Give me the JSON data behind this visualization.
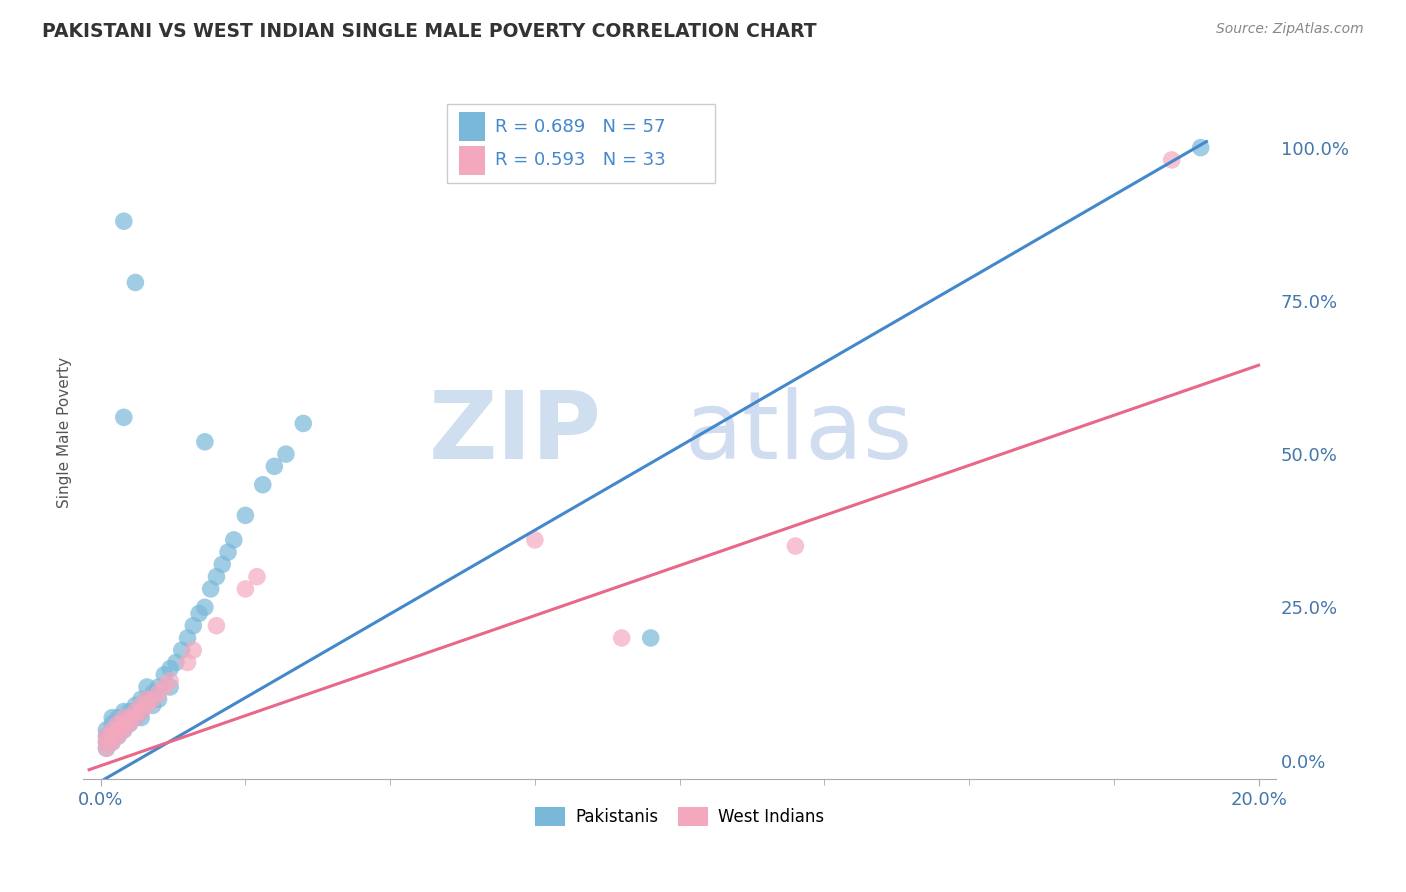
{
  "title": "PAKISTANI VS WEST INDIAN SINGLE MALE POVERTY CORRELATION CHART",
  "source": "Source: ZipAtlas.com",
  "ylabel": "Single Male Poverty",
  "x_min": 0.0,
  "x_max": 0.2,
  "y_min": -0.03,
  "y_max": 1.1,
  "right_yticks": [
    0.0,
    0.25,
    0.5,
    0.75,
    1.0
  ],
  "right_yticklabels": [
    "0.0%",
    "25.0%",
    "50.0%",
    "75.0%",
    "100.0%"
  ],
  "pakistani_R": 0.689,
  "pakistani_N": 57,
  "westindian_R": 0.593,
  "westindian_N": 33,
  "blue_color": "#7ab8d9",
  "pink_color": "#f4a8be",
  "blue_line_color": "#4488cc",
  "pink_line_color": "#e8688a",
  "watermark_zip_color": "#d0dff0",
  "watermark_atlas_color": "#d0ddf0",
  "grid_color": "#cccccc",
  "blue_line_x0": -0.002,
  "blue_line_y0": -0.045,
  "blue_line_x1": 0.191,
  "blue_line_y1": 1.01,
  "pink_line_x0": -0.002,
  "pink_line_y0": -0.015,
  "pink_line_x1": 0.2,
  "pink_line_y1": 0.645,
  "pakistani_x": [
    0.001,
    0.001,
    0.001,
    0.001,
    0.002,
    0.002,
    0.002,
    0.002,
    0.002,
    0.003,
    0.003,
    0.003,
    0.003,
    0.004,
    0.004,
    0.004,
    0.004,
    0.005,
    0.005,
    0.005,
    0.006,
    0.006,
    0.006,
    0.007,
    0.007,
    0.007,
    0.008,
    0.008,
    0.009,
    0.009,
    0.01,
    0.01,
    0.011,
    0.012,
    0.012,
    0.013,
    0.014,
    0.015,
    0.016,
    0.017,
    0.018,
    0.019,
    0.02,
    0.021,
    0.022,
    0.023,
    0.025,
    0.028,
    0.03,
    0.032,
    0.035,
    0.018,
    0.004,
    0.006,
    0.004,
    0.19,
    0.095
  ],
  "pakistani_y": [
    0.02,
    0.03,
    0.04,
    0.05,
    0.03,
    0.04,
    0.05,
    0.06,
    0.07,
    0.04,
    0.05,
    0.06,
    0.07,
    0.05,
    0.06,
    0.07,
    0.08,
    0.06,
    0.07,
    0.08,
    0.07,
    0.08,
    0.09,
    0.07,
    0.08,
    0.1,
    0.1,
    0.12,
    0.09,
    0.11,
    0.1,
    0.12,
    0.14,
    0.12,
    0.15,
    0.16,
    0.18,
    0.2,
    0.22,
    0.24,
    0.25,
    0.28,
    0.3,
    0.32,
    0.34,
    0.36,
    0.4,
    0.45,
    0.48,
    0.5,
    0.55,
    0.52,
    0.88,
    0.78,
    0.56,
    1.0,
    0.2
  ],
  "westindian_x": [
    0.001,
    0.001,
    0.001,
    0.002,
    0.002,
    0.002,
    0.003,
    0.003,
    0.003,
    0.004,
    0.004,
    0.004,
    0.005,
    0.005,
    0.006,
    0.006,
    0.007,
    0.007,
    0.008,
    0.008,
    0.009,
    0.01,
    0.011,
    0.012,
    0.015,
    0.016,
    0.02,
    0.025,
    0.027,
    0.09,
    0.12,
    0.075,
    0.185
  ],
  "westindian_y": [
    0.02,
    0.03,
    0.04,
    0.03,
    0.04,
    0.05,
    0.04,
    0.05,
    0.06,
    0.05,
    0.06,
    0.07,
    0.06,
    0.07,
    0.07,
    0.08,
    0.08,
    0.09,
    0.09,
    0.1,
    0.1,
    0.11,
    0.12,
    0.13,
    0.16,
    0.18,
    0.22,
    0.28,
    0.3,
    0.2,
    0.35,
    0.36,
    0.98
  ]
}
